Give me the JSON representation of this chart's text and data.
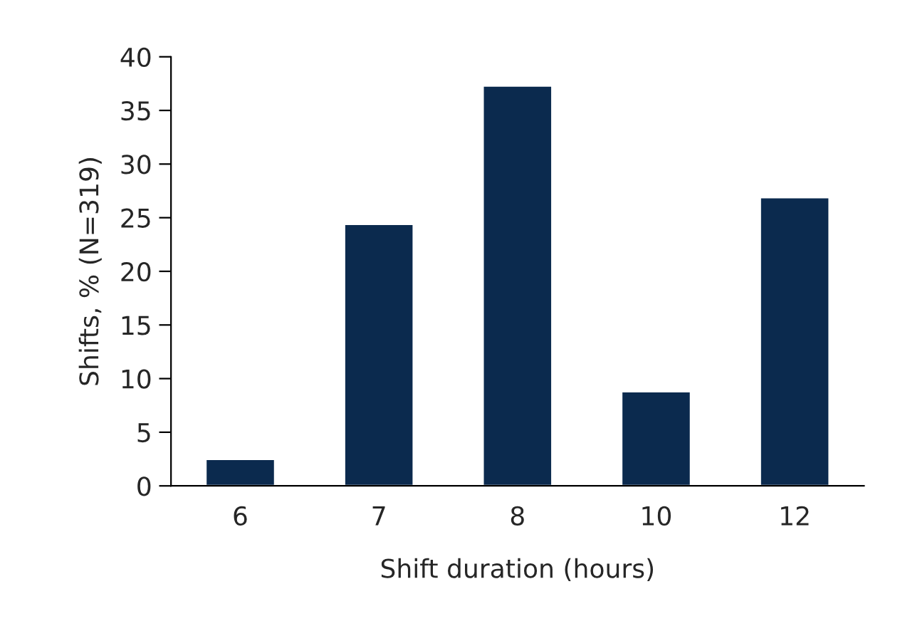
{
  "chart_data": {
    "type": "bar",
    "xlabel": "Shift duration (hours)",
    "ylabel": "Shifts, % (N=319)",
    "categories": [
      "6",
      "7",
      "8",
      "10",
      "12"
    ],
    "values": [
      2.5,
      24.4,
      37.3,
      8.8,
      26.9
    ],
    "color": "#0b2a4e",
    "ylim": [
      0,
      40
    ],
    "yticks": [
      0,
      5,
      10,
      15,
      20,
      25,
      30,
      35,
      40
    ],
    "grid": false,
    "legend": false
  }
}
